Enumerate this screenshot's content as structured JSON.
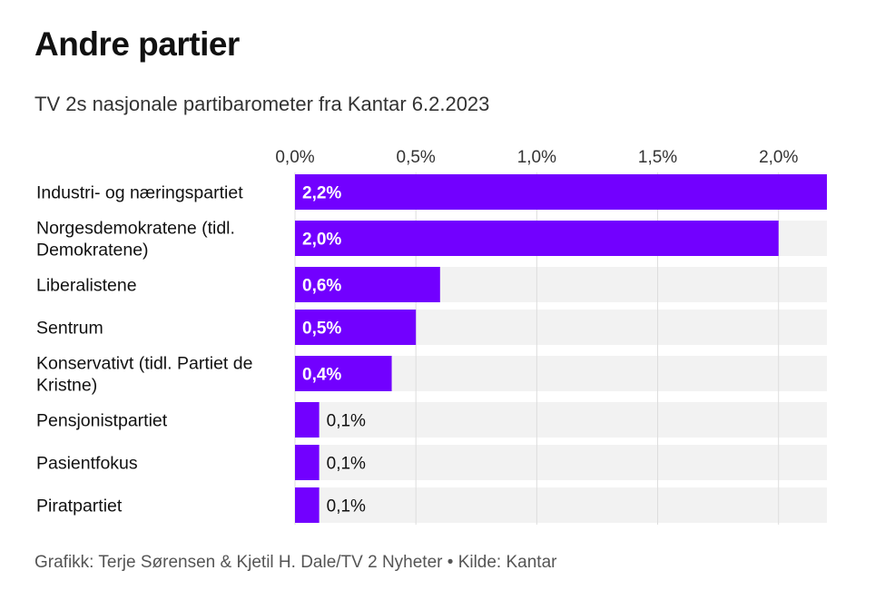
{
  "title": "Andre partier",
  "subtitle": "TV 2s nasjonale partibarometer fra Kantar 6.2.2023",
  "footer": "Grafikk: Terje Sørensen & Kjetil H. Dale/TV 2 Nyheter • Kilde: Kantar",
  "colors": {
    "bar": "#7200ff",
    "track": "#f2f2f2",
    "gridline": "#dddddd"
  },
  "chart_data": {
    "type": "bar",
    "orientation": "horizontal",
    "categories": [
      [
        "Industri- og næringspartiet"
      ],
      [
        "Norgesdemokratene (tidl.",
        "Demokratene)"
      ],
      [
        "Liberalistene"
      ],
      [
        "Sentrum"
      ],
      [
        "Konservativt (tidl. Partiet de",
        "Kristne)"
      ],
      [
        "Pensjonistpartiet"
      ],
      [
        "Pasientfokus"
      ],
      [
        "Piratpartiet"
      ]
    ],
    "values": [
      2.2,
      2.0,
      0.6,
      0.5,
      0.4,
      0.1,
      0.1,
      0.1
    ],
    "value_labels": [
      "2,2%",
      "2,0%",
      "0,6%",
      "0,5%",
      "0,4%",
      "0,1%",
      "0,1%",
      "0,1%"
    ],
    "x_ticks": [
      0,
      0.5,
      1.0,
      1.5,
      2.0
    ],
    "x_tick_labels": [
      "0,0%",
      "0,5%",
      "1,0%",
      "1,5%",
      "2,0%"
    ],
    "xlim": [
      0,
      2.2
    ],
    "axis_position": "top",
    "grid": true,
    "legend": "none"
  }
}
